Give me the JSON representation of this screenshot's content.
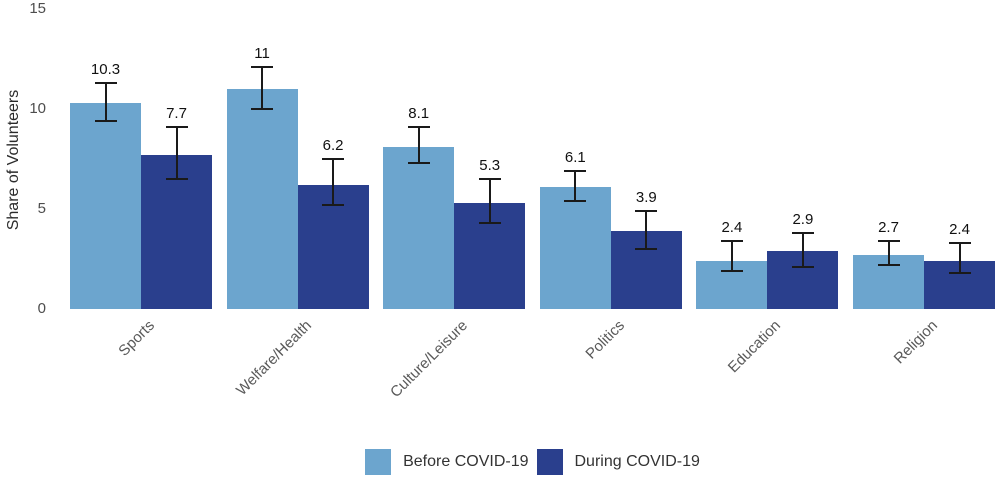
{
  "chart_data": {
    "type": "bar",
    "title": "",
    "xlabel": "",
    "ylabel": "Share of Volunteers",
    "ylim": [
      0,
      15
    ],
    "yticks": [
      "0",
      "5",
      "10",
      "15"
    ],
    "grid": false,
    "legend_position": "bottom",
    "categories": [
      "Sports",
      "Welfare/Health",
      "Culture/Leisure",
      "Politics",
      "Education",
      "Religion"
    ],
    "series": [
      {
        "name": "Before COVID-19",
        "color": "#6CA5CE",
        "values": [
          10.3,
          11,
          8.1,
          6.1,
          2.4,
          2.7
        ],
        "labels": [
          "10.3",
          "11",
          "8.1",
          "6.1",
          "2.4",
          "2.7"
        ],
        "error_low": [
          9.4,
          10.0,
          7.3,
          5.4,
          1.9,
          2.2
        ],
        "error_high": [
          11.3,
          12.1,
          9.1,
          6.9,
          3.4,
          3.4
        ]
      },
      {
        "name": "During COVID-19",
        "color": "#2A3F8D",
        "values": [
          7.7,
          6.2,
          5.3,
          3.9,
          2.9,
          2.4
        ],
        "labels": [
          "7.7",
          "6.2",
          "5.3",
          "3.9",
          "2.9",
          "2.4"
        ],
        "error_low": [
          6.5,
          5.2,
          4.3,
          3.0,
          2.1,
          1.8
        ],
        "error_high": [
          9.1,
          7.5,
          6.5,
          4.9,
          3.8,
          3.3
        ]
      }
    ],
    "colors": {
      "before": "#6CA5CE",
      "during": "#2A3F8D",
      "error_bar": "#1a1a1a",
      "tick_text": "#4d4d4d",
      "category_text": "#595959",
      "legend_text": "#333333"
    }
  }
}
